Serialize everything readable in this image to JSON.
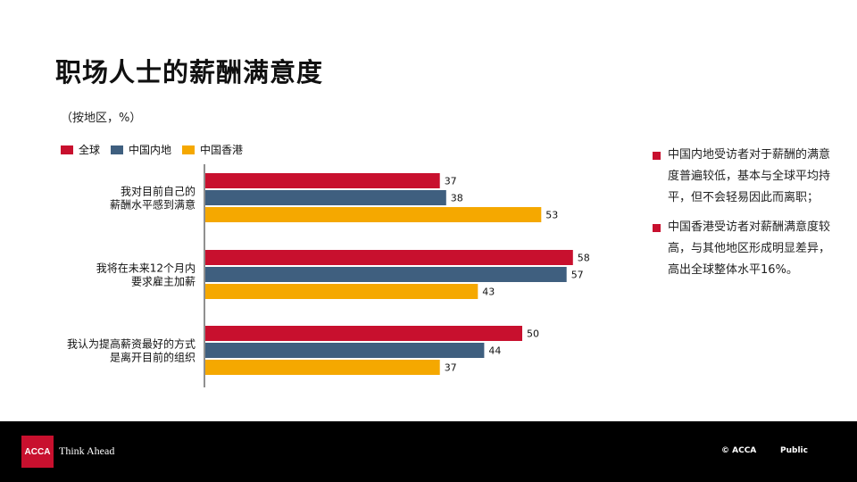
{
  "title": "职场人士的薪酬满意度",
  "subtitle": "（按地区，%）",
  "colors": {
    "global": "#c8102e",
    "mainland": "#3f5f7f",
    "hongkong": "#f5a800"
  },
  "chart_data": {
    "type": "bar",
    "orientation": "horizontal",
    "categories": [
      [
        "我对目前自己的",
        "薪酬水平感到满意"
      ],
      [
        "我将在未来12个月内",
        "要求雇主加薪"
      ],
      [
        "我认为提高薪资最好的方式",
        "是离开目前的组织"
      ]
    ],
    "series": [
      {
        "name": "全球",
        "values": [
          37,
          58,
          50
        ],
        "color": "#c8102e"
      },
      {
        "name": "中国内地",
        "values": [
          38,
          57,
          44
        ],
        "color": "#3f5f7f"
      },
      {
        "name": "中国香港",
        "values": [
          53,
          43,
          37
        ],
        "color": "#f5a800"
      }
    ],
    "xlim": [
      0,
      60
    ],
    "grid": false,
    "legend": "top-left",
    "data_labels": true
  },
  "notes": [
    "中国内地受访者对于薪酬的满意度普遍较低，基本与全球平均持平，但不会轻易因此而离职；",
    "中国香港受访者对薪酬满意度较高，与其他地区形成明显差异，高出全球整体水平16%。"
  ],
  "footer": {
    "logo": "ACCA",
    "tagline": "Think Ahead",
    "copyright": "© ACCA",
    "classification": "Public"
  }
}
